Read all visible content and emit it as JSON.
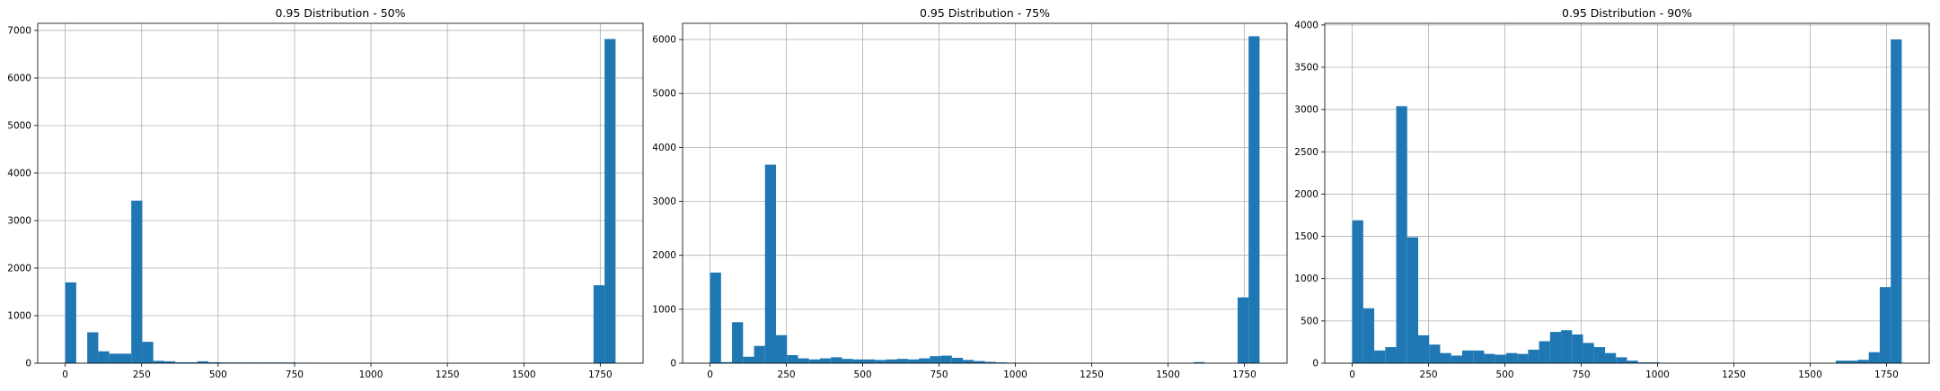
{
  "colors": {
    "bar": "#1f77b4",
    "grid": "#b0b0b0",
    "axis": "#000000",
    "background": "#ffffff"
  },
  "chart_data": [
    {
      "type": "bar",
      "title": "0.95 Distribution - 50%",
      "xlabel": "",
      "ylabel": "",
      "grid": true,
      "xlim": [
        -90,
        1890
      ],
      "ylim": [
        0,
        7150
      ],
      "xticks": [
        "0",
        "250",
        "500",
        "750",
        "1000",
        "1250",
        "1500",
        "1750"
      ],
      "yticks": [
        "0",
        "1000",
        "2000",
        "3000",
        "4000",
        "5000",
        "6000",
        "7000"
      ],
      "bin_width": 36,
      "series": [
        {
          "bins": [
            0,
            36,
            72,
            108,
            144,
            180,
            216,
            252,
            288,
            324,
            360,
            396,
            432,
            468,
            504,
            540,
            576,
            612,
            648,
            684,
            720,
            756,
            792,
            828,
            864,
            900,
            936,
            972,
            1008,
            1044,
            1728,
            1764
          ],
          "counts": [
            1700,
            0,
            650,
            250,
            200,
            200,
            3420,
            450,
            50,
            40,
            20,
            20,
            40,
            20,
            15,
            15,
            15,
            15,
            15,
            15,
            15,
            10,
            10,
            5,
            5,
            5,
            5,
            5,
            5,
            5,
            1640,
            6820
          ]
        }
      ]
    },
    {
      "type": "bar",
      "title": "0.95 Distribution - 75%",
      "xlabel": "",
      "ylabel": "",
      "grid": true,
      "xlim": [
        -90,
        1890
      ],
      "ylim": [
        0,
        6300
      ],
      "xticks": [
        "0",
        "250",
        "500",
        "750",
        "1000",
        "1250",
        "1500",
        "1750"
      ],
      "yticks": [
        "0",
        "1000",
        "2000",
        "3000",
        "4000",
        "5000",
        "6000"
      ],
      "bin_width": 36,
      "series": [
        {
          "bins": [
            0,
            36,
            72,
            108,
            144,
            180,
            216,
            252,
            288,
            324,
            360,
            396,
            432,
            468,
            504,
            540,
            576,
            612,
            648,
            684,
            720,
            756,
            792,
            828,
            864,
            900,
            936,
            972,
            1008,
            1584,
            1728,
            1764
          ],
          "counts": [
            1680,
            20,
            760,
            120,
            320,
            3680,
            520,
            150,
            90,
            70,
            90,
            110,
            80,
            70,
            70,
            60,
            70,
            80,
            70,
            90,
            130,
            140,
            100,
            60,
            40,
            25,
            15,
            10,
            5,
            20,
            1220,
            6060
          ]
        }
      ]
    },
    {
      "type": "bar",
      "title": "0.95 Distribution - 90%",
      "xlabel": "",
      "ylabel": "",
      "grid": true,
      "xlim": [
        -90,
        1890
      ],
      "ylim": [
        0,
        4020
      ],
      "xticks": [
        "0",
        "250",
        "500",
        "750",
        "1000",
        "1250",
        "1500",
        "1750"
      ],
      "yticks": [
        "0",
        "500",
        "1000",
        "1500",
        "2000",
        "2500",
        "3000",
        "3500",
        "4000"
      ],
      "bin_width": 36,
      "series": [
        {
          "bins": [
            0,
            36,
            72,
            108,
            144,
            180,
            216,
            252,
            288,
            324,
            360,
            396,
            432,
            468,
            504,
            540,
            576,
            612,
            648,
            684,
            720,
            756,
            792,
            828,
            864,
            900,
            936,
            972,
            1008,
            1584,
            1620,
            1656,
            1692,
            1728,
            1764
          ],
          "counts": [
            1690,
            650,
            150,
            190,
            3040,
            1490,
            330,
            220,
            120,
            90,
            150,
            150,
            110,
            100,
            120,
            110,
            160,
            260,
            370,
            390,
            340,
            240,
            190,
            120,
            70,
            30,
            10,
            10,
            5,
            30,
            30,
            40,
            130,
            900,
            3830
          ]
        }
      ]
    }
  ]
}
